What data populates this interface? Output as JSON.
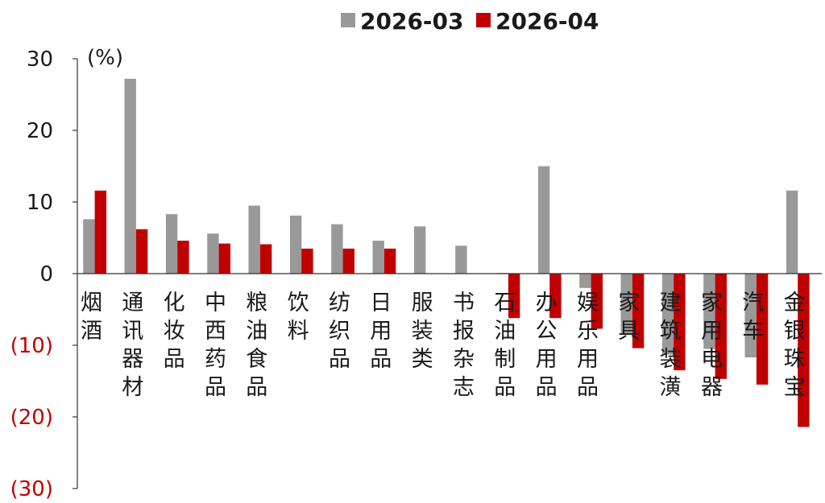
{
  "chart_data": {
    "type": "bar",
    "unit_label": "(%)",
    "categories": [
      "烟酒",
      "通讯器材",
      "化妆品",
      "中西药品",
      "粮油食品",
      "饮料",
      "纺织品",
      "日用品",
      "服装类",
      "书报杂志",
      "石油制品",
      "办公用品",
      "娱乐用品",
      "家具",
      "建筑装潢",
      "家用电器",
      "汽车",
      "金银珠宝"
    ],
    "series": [
      {
        "name": "2026-03",
        "color": "#999999",
        "values": [
          7.6,
          27.2,
          8.3,
          5.6,
          9.5,
          8.1,
          6.9,
          4.6,
          6.6,
          3.9,
          0.1,
          15.0,
          -2.0,
          -8.5,
          -11.3,
          -10.5,
          -11.7,
          11.6
        ]
      },
      {
        "name": "2026-04",
        "color": "#c00000",
        "values": [
          11.6,
          6.2,
          4.6,
          4.2,
          4.1,
          3.5,
          3.5,
          3.5,
          0.0,
          0.0,
          -6.2,
          -6.2,
          -7.7,
          -10.4,
          -13.5,
          -14.7,
          -15.5,
          -21.4
        ]
      }
    ],
    "ylim": [
      -30,
      30
    ],
    "yticks": [
      30,
      20,
      10,
      0,
      -10,
      -20,
      -30
    ],
    "ytick_labels": [
      "30",
      "20",
      "10",
      "0",
      "(10)",
      "(20)",
      "(30)"
    ],
    "legend_position": "top",
    "grid": false
  }
}
